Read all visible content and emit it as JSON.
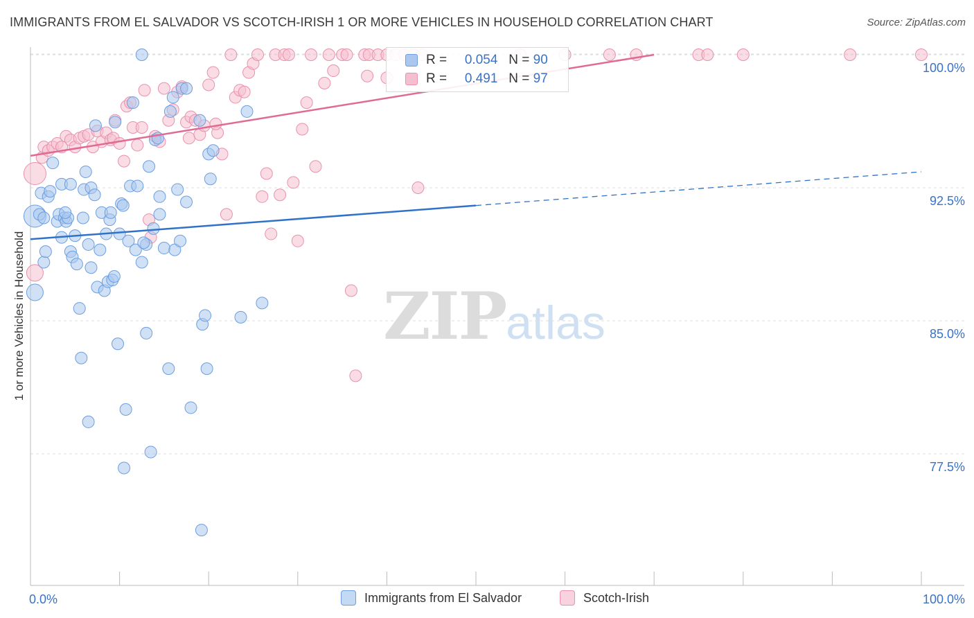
{
  "header": {
    "title": "IMMIGRANTS FROM EL SALVADOR VS SCOTCH-IRISH 1 OR MORE VEHICLES IN HOUSEHOLD CORRELATION CHART",
    "source": "Source: ZipAtlas.com"
  },
  "watermark": {
    "zip": "ZIP",
    "atlas": "atlas"
  },
  "legend_stats": {
    "rows": [
      {
        "r_label": "R =",
        "r_value": "0.054",
        "n_label": "N =",
        "n_value": "90"
      },
      {
        "r_label": "R =",
        "r_value": "0.491",
        "n_label": "N =",
        "n_value": "97"
      }
    ]
  },
  "legend_bottom": {
    "items": [
      {
        "label": "Immigrants from El Salvador"
      },
      {
        "label": "Scotch-Irish"
      }
    ]
  },
  "colors": {
    "blue_fill": "#aac8ef",
    "blue_stroke": "#6c9ee0",
    "blue_line": "#2f72c8",
    "pink_fill": "#f5bfd0",
    "pink_stroke": "#e991ad",
    "pink_line": "#e06a93",
    "tick_label": "#3a72c8",
    "grid": "#dddddd"
  },
  "chart_data": {
    "type": "scatter",
    "title": "IMMIGRANTS FROM EL SALVADOR VS SCOTCH-IRISH 1 OR MORE VEHICLES IN HOUSEHOLD CORRELATION CHART",
    "xlabel": "",
    "ylabel": "1 or more Vehicles in Household",
    "xlim": [
      0,
      100
    ],
    "ylim": [
      71.0,
      100.8
    ],
    "x_tick_labels": [
      "0.0%",
      "100.0%"
    ],
    "y_ticks": [
      {
        "value": 77.5,
        "label": "77.5%"
      },
      {
        "value": 85.0,
        "label": "85.0%"
      },
      {
        "value": 92.5,
        "label": "92.5%"
      },
      {
        "value": 100.0,
        "label": "100.0%"
      }
    ],
    "grid": true,
    "legend_position": "bottom",
    "series": [
      {
        "name": "Immigrants from El Salvador",
        "color": "#aac8ef",
        "trend": {
          "x": [
            0,
            50
          ],
          "y": [
            89.6,
            91.5
          ],
          "dashed_to": [
            100,
            93.4
          ]
        },
        "points": [
          [
            0.5,
            90.9,
            "L"
          ],
          [
            0.5,
            86.6,
            "M"
          ],
          [
            1.0,
            91.0
          ],
          [
            1.2,
            92.2
          ],
          [
            1.5,
            88.3
          ],
          [
            1.5,
            90.8
          ],
          [
            1.7,
            88.9
          ],
          [
            2.0,
            92.0
          ],
          [
            2.2,
            92.3
          ],
          [
            2.5,
            93.9
          ],
          [
            3.0,
            90.6
          ],
          [
            3.2,
            91.0
          ],
          [
            3.5,
            92.7
          ],
          [
            3.5,
            89.7
          ],
          [
            3.8,
            90.8
          ],
          [
            4.0,
            90.6
          ],
          [
            4.2,
            90.8
          ],
          [
            4.5,
            92.7
          ],
          [
            4.5,
            88.9
          ],
          [
            4.7,
            88.6
          ],
          [
            5.0,
            89.8
          ],
          [
            5.2,
            88.2
          ],
          [
            5.5,
            85.7
          ],
          [
            5.7,
            82.9
          ],
          [
            6.0,
            92.4
          ],
          [
            6.2,
            93.4
          ],
          [
            6.5,
            89.3
          ],
          [
            6.5,
            79.3
          ],
          [
            6.8,
            92.5
          ],
          [
            6.8,
            88.0
          ],
          [
            7.2,
            92.1
          ],
          [
            7.3,
            96.0
          ],
          [
            7.5,
            86.9
          ],
          [
            7.8,
            89.0
          ],
          [
            8.0,
            91.1
          ],
          [
            8.3,
            86.7
          ],
          [
            8.5,
            89.9
          ],
          [
            8.7,
            87.2
          ],
          [
            8.9,
            90.7
          ],
          [
            9.2,
            87.3
          ],
          [
            9.4,
            87.5
          ],
          [
            9.5,
            96.2
          ],
          [
            9.8,
            83.7
          ],
          [
            10.0,
            89.9
          ],
          [
            10.2,
            91.6
          ],
          [
            10.4,
            91.5
          ],
          [
            10.5,
            76.7
          ],
          [
            10.7,
            80.0
          ],
          [
            11.0,
            89.5
          ],
          [
            11.2,
            92.6
          ],
          [
            11.5,
            97.3
          ],
          [
            11.8,
            89.0
          ],
          [
            12.0,
            92.6
          ],
          [
            12.5,
            88.3
          ],
          [
            12.5,
            100.0
          ],
          [
            13.0,
            84.3
          ],
          [
            13.0,
            89.3
          ],
          [
            13.3,
            93.7
          ],
          [
            13.5,
            77.6
          ],
          [
            13.8,
            90.2
          ],
          [
            14.0,
            95.2
          ],
          [
            14.5,
            92.0
          ],
          [
            14.5,
            91.0
          ],
          [
            15.0,
            89.1
          ],
          [
            15.5,
            82.3
          ],
          [
            15.7,
            96.8
          ],
          [
            16.0,
            97.6
          ],
          [
            16.2,
            89.0
          ],
          [
            16.5,
            92.4
          ],
          [
            16.8,
            89.5
          ],
          [
            17.0,
            98.1
          ],
          [
            17.5,
            98.1
          ],
          [
            17.5,
            91.7
          ],
          [
            18.0,
            80.1
          ],
          [
            19.0,
            96.3
          ],
          [
            19.3,
            84.8
          ],
          [
            19.6,
            85.3
          ],
          [
            19.2,
            73.2
          ],
          [
            19.8,
            82.3
          ],
          [
            20.0,
            94.4
          ],
          [
            20.2,
            93.0
          ],
          [
            20.5,
            94.6
          ],
          [
            23.6,
            85.2
          ],
          [
            24.3,
            96.8
          ],
          [
            26.0,
            86.0
          ],
          [
            12.7,
            89.4
          ],
          [
            14.3,
            95.3
          ],
          [
            3.9,
            91.1
          ],
          [
            5.9,
            90.8
          ],
          [
            9.0,
            91.1
          ]
        ]
      },
      {
        "name": "Scotch-Irish",
        "color": "#f5bfd0",
        "trend": {
          "x": [
            0,
            70
          ],
          "y": [
            94.3,
            100.0
          ]
        },
        "points": [
          [
            0.5,
            93.3,
            "L"
          ],
          [
            0.5,
            87.7,
            "M"
          ],
          [
            1.3,
            94.2
          ],
          [
            1.5,
            94.8
          ],
          [
            2.0,
            94.6
          ],
          [
            2.5,
            94.8
          ],
          [
            3.0,
            95.0
          ],
          [
            3.5,
            94.8
          ],
          [
            4.0,
            95.4
          ],
          [
            4.5,
            95.2
          ],
          [
            5.0,
            94.8
          ],
          [
            5.5,
            95.3
          ],
          [
            6.0,
            95.4
          ],
          [
            6.5,
            95.5
          ],
          [
            7.0,
            94.8
          ],
          [
            7.5,
            95.7
          ],
          [
            8.0,
            95.1
          ],
          [
            8.5,
            95.6
          ],
          [
            9.0,
            95.2
          ],
          [
            9.3,
            95.3
          ],
          [
            9.5,
            96.3
          ],
          [
            10.0,
            95.0
          ],
          [
            10.5,
            94.0
          ],
          [
            10.8,
            97.1
          ],
          [
            11.2,
            97.3
          ],
          [
            11.5,
            95.9
          ],
          [
            12.0,
            94.9
          ],
          [
            12.5,
            95.9
          ],
          [
            12.8,
            98.0
          ],
          [
            13.3,
            90.7
          ],
          [
            13.5,
            89.7
          ],
          [
            14.0,
            95.4
          ],
          [
            14.5,
            95.1
          ],
          [
            15.0,
            98.1
          ],
          [
            15.5,
            96.3
          ],
          [
            16.0,
            96.9
          ],
          [
            16.5,
            97.9
          ],
          [
            17.0,
            98.2
          ],
          [
            17.5,
            96.2
          ],
          [
            17.8,
            95.3
          ],
          [
            18.0,
            96.5
          ],
          [
            18.5,
            96.3
          ],
          [
            19.0,
            95.5
          ],
          [
            19.5,
            96.0
          ],
          [
            20.0,
            98.3
          ],
          [
            20.5,
            99.0
          ],
          [
            21.0,
            95.6
          ],
          [
            21.5,
            94.4
          ],
          [
            22.0,
            91.0
          ],
          [
            22.5,
            100.0
          ],
          [
            23.0,
            97.6
          ],
          [
            23.5,
            98.0
          ],
          [
            24.0,
            97.9
          ],
          [
            24.5,
            99.0
          ],
          [
            25.0,
            99.5
          ],
          [
            25.5,
            100.0
          ],
          [
            26.0,
            92.0
          ],
          [
            26.5,
            93.3
          ],
          [
            27.0,
            89.9
          ],
          [
            27.5,
            100.0
          ],
          [
            28.0,
            92.1
          ],
          [
            28.5,
            100.0
          ],
          [
            29.0,
            100.0
          ],
          [
            29.5,
            92.8
          ],
          [
            30.0,
            89.5
          ],
          [
            30.5,
            95.8
          ],
          [
            31.0,
            97.3
          ],
          [
            31.5,
            100.0
          ],
          [
            32.0,
            93.7
          ],
          [
            33.0,
            98.4
          ],
          [
            33.5,
            100.0
          ],
          [
            34.0,
            99.1
          ],
          [
            35.0,
            100.0
          ],
          [
            35.5,
            100.0
          ],
          [
            36.0,
            86.7
          ],
          [
            36.5,
            81.9
          ],
          [
            37.5,
            100.0
          ],
          [
            38.0,
            100.0
          ],
          [
            39.0,
            100.0
          ],
          [
            40.0,
            100.0
          ],
          [
            41.0,
            100.0
          ],
          [
            42.0,
            100.0
          ],
          [
            43.0,
            100.0
          ],
          [
            43.5,
            92.5
          ],
          [
            44.0,
            100.0
          ],
          [
            55.0,
            100.0
          ],
          [
            60.0,
            100.0
          ],
          [
            65.0,
            100.0
          ],
          [
            68.0,
            100.0
          ],
          [
            75.0,
            100.0
          ],
          [
            76.0,
            100.0
          ],
          [
            80.0,
            100.0
          ],
          [
            92.0,
            100.0
          ],
          [
            100.0,
            100.0
          ],
          [
            40.0,
            98.7
          ],
          [
            37.8,
            98.8
          ],
          [
            20.8,
            96.1
          ]
        ]
      }
    ]
  }
}
